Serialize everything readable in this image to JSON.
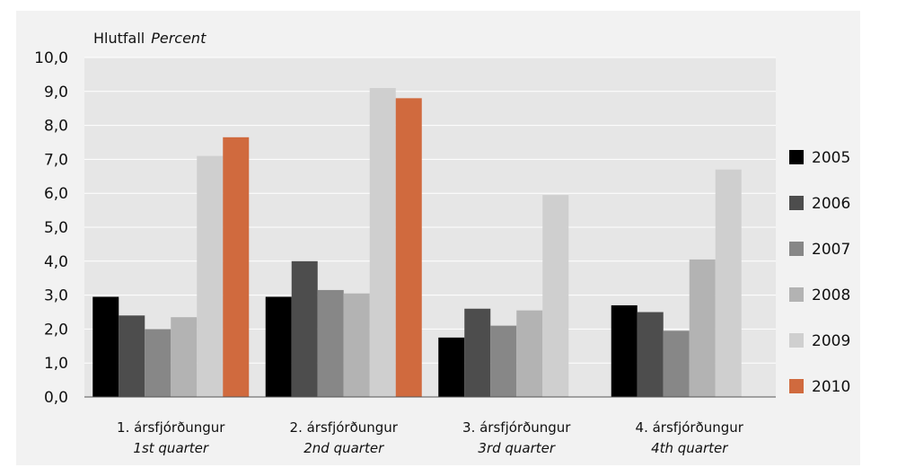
{
  "chart_data": {
    "type": "bar",
    "ylabel_is": "Hlutfall",
    "ylabel_en": "Percent",
    "ylim": [
      0,
      10
    ],
    "yticks": [
      "0,0",
      "1,0",
      "2,0",
      "3,0",
      "4,0",
      "5,0",
      "6,0",
      "7,0",
      "8,0",
      "9,0",
      "10,0"
    ],
    "grid": true,
    "legend_position": "right",
    "categories": [
      {
        "is": "1. ársfjórðungur",
        "en": "1st quarter"
      },
      {
        "is": "2. ársfjórðungur",
        "en": "2nd quarter"
      },
      {
        "is": "3. ársfjórðungur",
        "en": "3rd quarter"
      },
      {
        "is": "4. ársfjórðungur",
        "en": "4th quarter"
      }
    ],
    "series": [
      {
        "name": "2005",
        "color": "#000000",
        "values": [
          2.95,
          2.95,
          1.75,
          2.7
        ]
      },
      {
        "name": "2006",
        "color": "#4d4d4d",
        "values": [
          2.4,
          4.0,
          2.6,
          2.5
        ]
      },
      {
        "name": "2007",
        "color": "#878787",
        "values": [
          2.0,
          3.15,
          2.1,
          1.95
        ]
      },
      {
        "name": "2008",
        "color": "#b3b3b3",
        "values": [
          2.35,
          3.05,
          2.55,
          4.05
        ]
      },
      {
        "name": "2009",
        "color": "#cfcfcf",
        "values": [
          7.1,
          9.1,
          5.95,
          6.7
        ]
      },
      {
        "name": "2010",
        "color": "#d06a3e",
        "values": [
          7.65,
          8.8,
          null,
          null
        ]
      }
    ]
  }
}
